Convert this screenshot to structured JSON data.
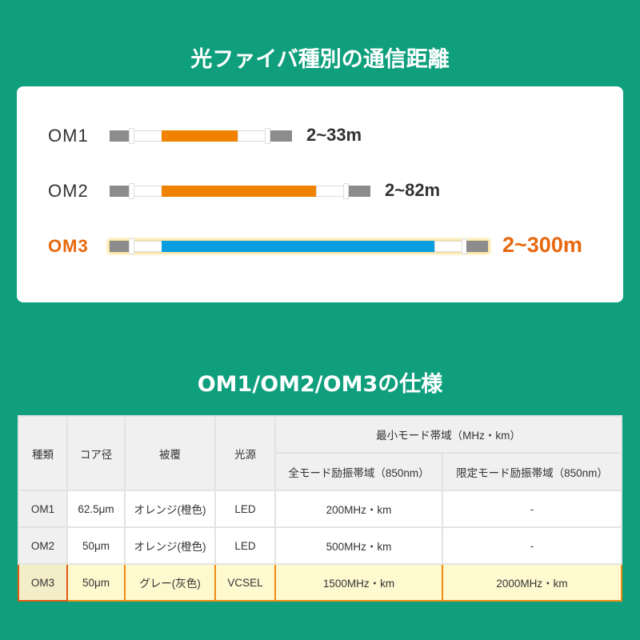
{
  "distance_title": "光ファイバ種別の通信距離",
  "cables": [
    {
      "label": "OM1",
      "distance": "2~33m",
      "color": "#ef8200"
    },
    {
      "label": "OM2",
      "distance": "2~82m",
      "color": "#ef8200"
    },
    {
      "label": "OM3",
      "distance": "2~300m",
      "color": "#0a9ee0",
      "highlight_color": "#e8680e"
    }
  ],
  "spec_title": "OM1/OM2/OM3の仕様",
  "table": {
    "headers": {
      "type": "種類",
      "core": "コア径",
      "coating": "被覆",
      "source": "光源",
      "bandwidth": "最小モード帯域（MHz・km）",
      "full": "全モード励振帯域（850nm）",
      "limited": "限定モード励振帯域（850nm）"
    },
    "rows": [
      [
        "OM1",
        "62.5μm",
        "オレンジ(橙色)",
        "LED",
        "200MHz・km",
        "-"
      ],
      [
        "OM2",
        "50μm",
        "オレンジ(橙色)",
        "LED",
        "500MHz・km",
        "-"
      ],
      [
        "OM3",
        "50μm",
        "グレー(灰色)",
        "VCSEL",
        "1500MHz・km",
        "2000MHz・km"
      ]
    ]
  }
}
